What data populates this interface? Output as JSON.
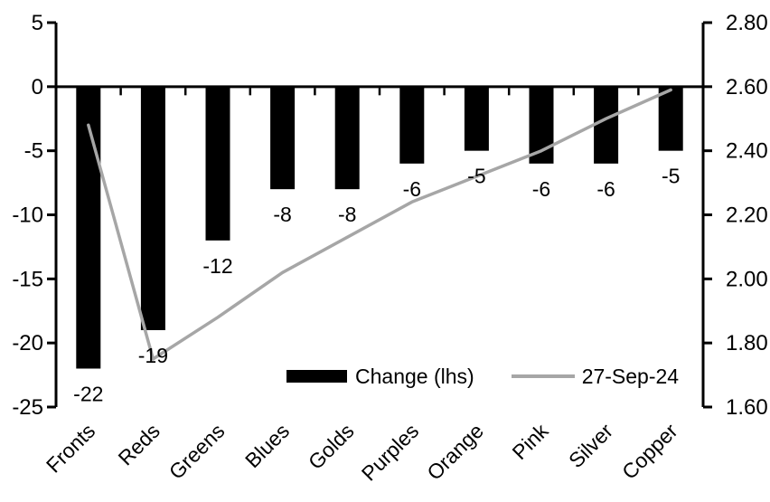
{
  "chart_data": {
    "type": "bar",
    "title": "",
    "categories": [
      "Fronts",
      "Reds",
      "Greens",
      "Blues",
      "Golds",
      "Purples",
      "Orange",
      "Pink",
      "Silver",
      "Copper"
    ],
    "series": [
      {
        "name": "Change (lhs)",
        "kind": "bar",
        "axis": "left",
        "color": "#000000",
        "values": [
          -22,
          -19,
          -12,
          -8,
          -8,
          -6,
          -5,
          -6,
          -6,
          -5
        ],
        "data_labels": [
          "-22",
          "-19",
          "-12",
          "-8",
          "-8",
          "-6",
          "-5",
          "-6",
          "-6",
          "-5"
        ]
      },
      {
        "name": "27-Sep-24",
        "kind": "line",
        "axis": "right",
        "color": "#a6a6a6",
        "values": [
          2.48,
          1.75,
          1.88,
          2.02,
          2.13,
          2.24,
          2.32,
          2.4,
          2.5,
          2.59
        ]
      }
    ],
    "left_axis": {
      "min": -25,
      "max": 5,
      "ticks": [
        "5",
        "0",
        "-5",
        "-10",
        "-15",
        "-20",
        "-25"
      ]
    },
    "right_axis": {
      "min": 1.6,
      "max": 2.8,
      "ticks": [
        "2.80",
        "2.60",
        "2.40",
        "2.20",
        "2.00",
        "1.80",
        "1.60"
      ]
    },
    "grid": false,
    "legend_position": "bottom-inside",
    "colors": {
      "background": "#ffffff",
      "axis": "#000000",
      "text": "#000000"
    }
  }
}
